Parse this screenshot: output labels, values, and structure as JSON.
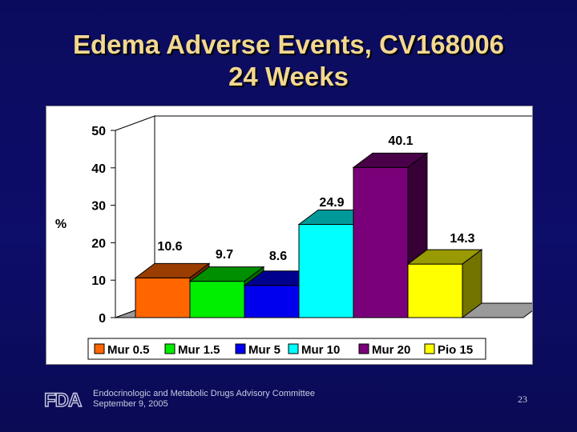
{
  "slide": {
    "title_line1": "Edema Adverse Events, CV168006",
    "title_line2": "24 Weeks",
    "footer_line1": "Endocrinologic and Metabolic Drugs Advisory Committee",
    "footer_line2": "September 9, 2005",
    "page_number": "23",
    "logo_text": "FDA"
  },
  "chart_data": {
    "type": "bar",
    "style": "3d",
    "title": "",
    "xlabel": "",
    "ylabel": "%",
    "ylim": [
      0,
      50
    ],
    "yticks": [
      0,
      10,
      20,
      30,
      40,
      50
    ],
    "grid": false,
    "legend_position": "bottom",
    "categories": [
      "Mur 0.5",
      "Mur 1.5",
      "Mur 5",
      "Mur 10",
      "Mur 20",
      "Pio 15"
    ],
    "values": [
      10.6,
      9.7,
      8.6,
      24.9,
      40.1,
      14.3
    ],
    "value_labels": [
      "10.6",
      "9.7",
      "8.6",
      "24.9",
      "40.1",
      "14.3"
    ],
    "colors": [
      "#ff6600",
      "#00ee00",
      "#0000ee",
      "#00ffff",
      "#7a007a",
      "#ffff00"
    ]
  }
}
